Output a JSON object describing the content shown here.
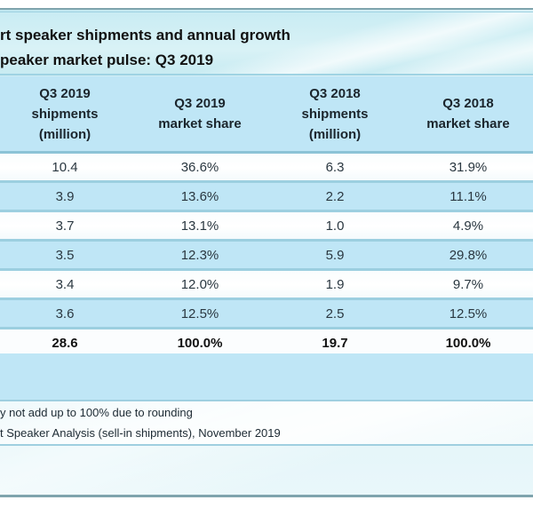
{
  "title": {
    "line1": "rt speaker shipments and annual growth",
    "line2": "peaker market pulse: Q3 2019"
  },
  "table": {
    "columns": [
      {
        "label": "Q3 2019\nshipments\n(million)"
      },
      {
        "label": "Q3 2019\nmarket share"
      },
      {
        "label": "Q3 2018\nshipments\n(million)"
      },
      {
        "label": "Q3 2018\nmarket share"
      }
    ],
    "rows": [
      [
        "10.4",
        "36.6%",
        "6.3",
        "31.9%"
      ],
      [
        "3.9",
        "13.6%",
        "2.2",
        "11.1%"
      ],
      [
        "3.7",
        "13.1%",
        "1.0",
        "4.9%"
      ],
      [
        "3.5",
        "12.3%",
        "5.9",
        "29.8%"
      ],
      [
        "3.4",
        "12.0%",
        "1.9",
        "9.7%"
      ],
      [
        "3.6",
        "12.5%",
        "2.5",
        "12.5%"
      ]
    ],
    "total": [
      "28.6",
      "100.0%",
      "19.7",
      "100.0%"
    ]
  },
  "notes": {
    "line1": "y not add up to 100% due to rounding",
    "line2": "t Speaker Analysis (sell-in shipments), November 2019"
  }
}
